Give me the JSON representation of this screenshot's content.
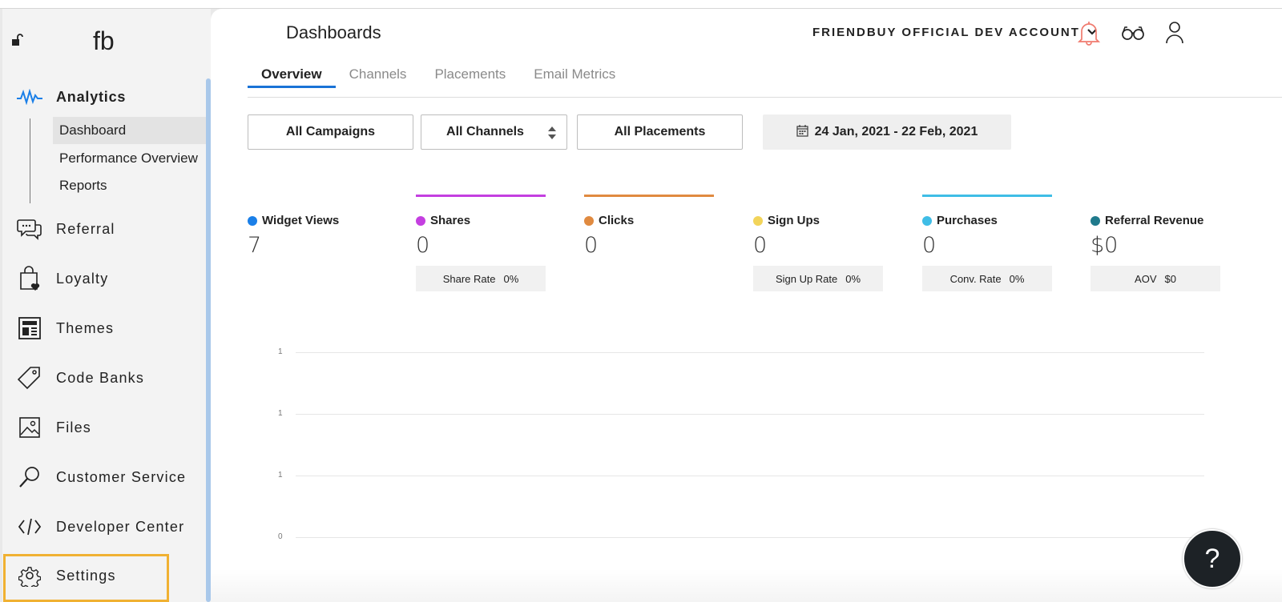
{
  "sidebar": {
    "logo": "fb",
    "analytics": {
      "label": "Analytics",
      "sub_items": [
        {
          "label": "Dashboard",
          "active": true
        },
        {
          "label": "Performance Overview",
          "active": false
        },
        {
          "label": "Reports",
          "active": false
        }
      ]
    },
    "items": [
      {
        "label": "Referral",
        "icon": "chat-bubbles-icon"
      },
      {
        "label": "Loyalty",
        "icon": "shopping-bag-heart-icon"
      },
      {
        "label": "Themes",
        "icon": "layout-icon"
      },
      {
        "label": "Code Banks",
        "icon": "tag-icon"
      },
      {
        "label": "Files",
        "icon": "image-icon"
      },
      {
        "label": "Customer Service",
        "icon": "magnifier-icon"
      },
      {
        "label": "Developer Center",
        "icon": "code-icon"
      },
      {
        "label": "Settings",
        "icon": "gear-icon"
      }
    ]
  },
  "header": {
    "title": "Dashboards",
    "account": "FRIENDBUY OFFICIAL DEV ACCOUNT",
    "bell_color": "#f07a6e"
  },
  "tabs": [
    {
      "label": "Overview",
      "active": true
    },
    {
      "label": "Channels",
      "active": false
    },
    {
      "label": "Placements",
      "active": false
    },
    {
      "label": "Email Metrics",
      "active": false
    }
  ],
  "filters": {
    "campaigns": "All Campaigns",
    "channels": "All Channels",
    "placements": "All Placements",
    "date_range": "24 Jan, 2021 - 22 Feb, 2021"
  },
  "metrics": [
    {
      "name": "Widget Views",
      "value": "7",
      "dot": "#1a7fe8",
      "bar": "",
      "rate_label": "",
      "rate_value": ""
    },
    {
      "name": "Shares",
      "value": "0",
      "dot": "#c43fe0",
      "bar": "#c43fe0",
      "rate_label": "Share Rate",
      "rate_value": "0%"
    },
    {
      "name": "Clicks",
      "value": "0",
      "dot": "#e08a40",
      "bar": "#e08a40",
      "rate_label": "",
      "rate_value": ""
    },
    {
      "name": "Sign Ups",
      "value": "0",
      "dot": "#f2d45a",
      "bar": "",
      "rate_label": "Sign Up Rate",
      "rate_value": "0%"
    },
    {
      "name": "Purchases",
      "value": "0",
      "dot": "#3fbde6",
      "bar": "#3fbde6",
      "rate_label": "Conv. Rate",
      "rate_value": "0%"
    },
    {
      "name": "Referral Revenue",
      "value": "$0",
      "dot": "#1f7a8c",
      "bar": "",
      "rate_label": "AOV",
      "rate_value": "$0"
    }
  ],
  "chart_data": {
    "type": "line",
    "y_ticks": [
      "1",
      "1",
      "1",
      "0"
    ],
    "series": []
  },
  "help": {
    "label": "?"
  }
}
